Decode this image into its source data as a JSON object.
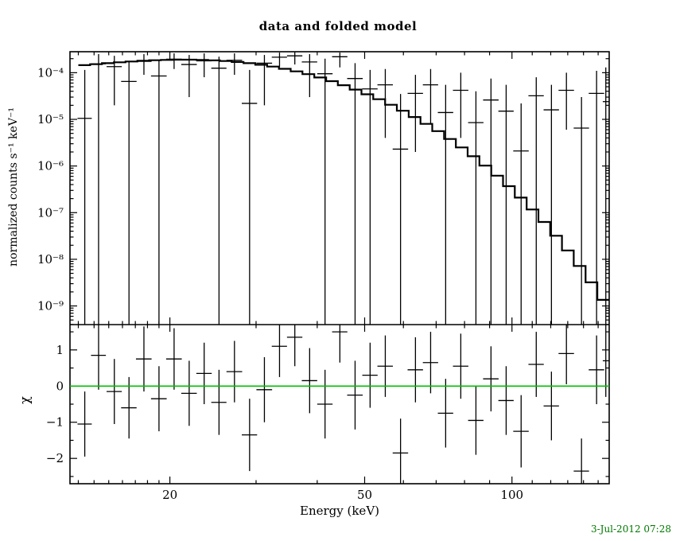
{
  "footer": {
    "timestamp": "3-Jul-2012 07:28",
    "color": "#007700"
  },
  "chart_data": {
    "type": "scatter",
    "title": "data and folded model",
    "xlabel": "Energy (keV)",
    "x_axis": {
      "scale": "log",
      "range": [
        12.5,
        158
      ],
      "major_ticks": [
        {
          "v": 20,
          "label": "20"
        },
        {
          "v": 50,
          "label": "50"
        },
        {
          "v": 100,
          "label": "100"
        }
      ],
      "minor_ticks": [
        13,
        14,
        15,
        16,
        17,
        18,
        19,
        30,
        40,
        60,
        70,
        80,
        90,
        110,
        120,
        130,
        140,
        150
      ]
    },
    "top_panel": {
      "ylabel": "normalized counts s⁻¹ keV⁻¹",
      "y_axis": {
        "scale": "log",
        "range_exp": [
          -9.4,
          -3.55
        ],
        "major_ticks": [
          {
            "exp": -4,
            "label": "10⁻⁴"
          },
          {
            "exp": -5,
            "label": "10⁻⁵"
          },
          {
            "exp": -6,
            "label": "10⁻⁶"
          },
          {
            "exp": -7,
            "label": "10⁻⁷"
          },
          {
            "exp": -8,
            "label": "10⁻⁸"
          },
          {
            "exp": -9,
            "label": "10⁻⁹"
          }
        ]
      },
      "model_step": {
        "bin_edges": [
          13.0,
          13.74,
          14.53,
          15.36,
          16.23,
          17.16,
          18.14,
          19.17,
          20.27,
          21.42,
          22.65,
          23.94,
          25.31,
          26.75,
          28.28,
          29.89,
          31.6,
          33.4,
          35.31,
          37.32,
          39.45,
          41.71,
          44.08,
          46.6,
          49.26,
          52.07,
          55.04,
          58.19,
          61.51,
          65.02,
          68.73,
          72.65,
          76.79,
          81.18,
          85.81,
          90.7,
          95.88,
          101.35,
          107.13,
          113.24,
          119.7,
          126.53,
          133.74,
          141.37,
          149.43,
          157.96
        ],
        "values": [
          0.000145,
          0.000152,
          0.00016,
          0.000167,
          0.000174,
          0.00018,
          0.000185,
          0.000188,
          0.00019,
          0.00019,
          0.000188,
          0.000184,
          0.000178,
          0.00017,
          0.00016,
          0.000148,
          0.000135,
          0.000121,
          0.000107,
          9.3e-05,
          7.9e-05,
          6.6e-05,
          5.4e-05,
          4.35e-05,
          3.45e-05,
          2.7e-05,
          2.05e-05,
          1.53e-05,
          1.12e-05,
          8e-06,
          5.6e-06,
          3.8e-06,
          2.5e-06,
          1.62e-06,
          1.02e-06,
          6.2e-07,
          3.7e-07,
          2.1e-07,
          1.17e-07,
          6.3e-08,
          3.2e-08,
          1.55e-08,
          7.2e-09,
          3.2e-09,
          1.35e-09
        ]
      },
      "data_points": [
        {
          "e": 13.4,
          "de": 0.45,
          "v": 1.05e-05,
          "lo": 1e-12,
          "hi": 0.000115
        },
        {
          "e": 14.3,
          "de": 0.5,
          "v": 0.000155,
          "lo": 1e-12,
          "hi": 0.00025
        },
        {
          "e": 15.4,
          "de": 0.55,
          "v": 0.000135,
          "lo": 2e-05,
          "hi": 0.00023
        },
        {
          "e": 16.5,
          "de": 0.6,
          "v": 6.5e-05,
          "lo": 1e-12,
          "hi": 0.000175
        },
        {
          "e": 17.7,
          "de": 0.65,
          "v": 0.000175,
          "lo": 9e-05,
          "hi": 0.00025
        },
        {
          "e": 19.0,
          "de": 0.7,
          "v": 8.5e-05,
          "lo": 1e-12,
          "hi": 0.00019
        },
        {
          "e": 20.4,
          "de": 0.75,
          "v": 0.000195,
          "lo": 0.00012,
          "hi": 0.00026
        },
        {
          "e": 21.9,
          "de": 0.8,
          "v": 0.00015,
          "lo": 3e-05,
          "hi": 0.00024
        },
        {
          "e": 23.5,
          "de": 0.85,
          "v": 0.00018,
          "lo": 8e-05,
          "hi": 0.00026
        },
        {
          "e": 25.2,
          "de": 0.9,
          "v": 0.000125,
          "lo": 1e-12,
          "hi": 0.00022
        },
        {
          "e": 27.1,
          "de": 1.0,
          "v": 0.000185,
          "lo": 9e-05,
          "hi": 0.00026
        },
        {
          "e": 29.1,
          "de": 1.05,
          "v": 2.2e-05,
          "lo": 1e-12,
          "hi": 0.000115
        },
        {
          "e": 31.2,
          "de": 1.15,
          "v": 0.00016,
          "lo": 2e-05,
          "hi": 0.00024
        },
        {
          "e": 33.5,
          "de": 1.2,
          "v": 0.000215,
          "lo": 0.00013,
          "hi": 0.00027
        },
        {
          "e": 36.0,
          "de": 1.3,
          "v": 0.00023,
          "lo": 0.00015,
          "hi": 0.000275
        },
        {
          "e": 38.6,
          "de": 1.4,
          "v": 0.00017,
          "lo": 3e-05,
          "hi": 0.00025
        },
        {
          "e": 41.5,
          "de": 1.5,
          "v": 9.5e-05,
          "lo": 1e-12,
          "hi": 0.0002
        },
        {
          "e": 44.5,
          "de": 1.6,
          "v": 0.00022,
          "lo": 0.00013,
          "hi": 0.00027
        },
        {
          "e": 47.8,
          "de": 1.75,
          "v": 7.5e-05,
          "lo": 1e-12,
          "hi": 0.00016
        },
        {
          "e": 51.3,
          "de": 1.85,
          "v": 4.5e-05,
          "lo": 1e-12,
          "hi": 0.000115
        },
        {
          "e": 55.1,
          "de": 2.0,
          "v": 5.5e-05,
          "lo": 4e-06,
          "hi": 0.00012
        },
        {
          "e": 59.2,
          "de": 2.15,
          "v": 2.3e-06,
          "lo": 1e-12,
          "hi": 3.5e-05
        },
        {
          "e": 63.5,
          "de": 2.3,
          "v": 3.6e-05,
          "lo": 2e-06,
          "hi": 9e-05
        },
        {
          "e": 68.2,
          "de": 2.45,
          "v": 5.5e-05,
          "lo": 8e-06,
          "hi": 0.00012
        },
        {
          "e": 73.2,
          "de": 2.65,
          "v": 1.4e-05,
          "lo": 1e-12,
          "hi": 5.5e-05
        },
        {
          "e": 78.6,
          "de": 2.85,
          "v": 4.2e-05,
          "lo": 4e-06,
          "hi": 0.0001
        },
        {
          "e": 84.4,
          "de": 3.05,
          "v": 8.5e-06,
          "lo": 1e-12,
          "hi": 4e-05
        },
        {
          "e": 90.6,
          "de": 3.3,
          "v": 2.6e-05,
          "lo": 1e-12,
          "hi": 7.5e-05
        },
        {
          "e": 97.3,
          "de": 3.5,
          "v": 1.5e-05,
          "lo": 1e-12,
          "hi": 5.5e-05
        },
        {
          "e": 104.4,
          "de": 3.8,
          "v": 2.1e-06,
          "lo": 1e-12,
          "hi": 2.2e-05
        },
        {
          "e": 112.1,
          "de": 4.05,
          "v": 3.2e-05,
          "lo": 1e-12,
          "hi": 8e-05
        },
        {
          "e": 120.4,
          "de": 4.35,
          "v": 1.6e-05,
          "lo": 1e-12,
          "hi": 5.5e-05
        },
        {
          "e": 129.2,
          "de": 4.7,
          "v": 4.2e-05,
          "lo": 6e-06,
          "hi": 0.0001
        },
        {
          "e": 138.7,
          "de": 5.0,
          "v": 6.5e-06,
          "lo": 1e-12,
          "hi": 3e-05
        },
        {
          "e": 148.9,
          "de": 5.4,
          "v": 3.6e-05,
          "lo": 1e-12,
          "hi": 0.00011
        },
        {
          "e": 155.5,
          "de": 2.2,
          "v": 2.4e-05,
          "lo": 1e-12,
          "hi": 0.00013
        }
      ]
    },
    "bottom_panel": {
      "ylabel": "χ",
      "y_axis": {
        "range": [
          -2.7,
          1.7
        ],
        "major_ticks": [
          {
            "v": 1,
            "label": "1"
          },
          {
            "v": 0,
            "label": "0"
          },
          {
            "v": -1,
            "label": "−1"
          },
          {
            "v": -2,
            "label": "−2"
          }
        ],
        "minor_ticks": [
          -2.5,
          -1.5,
          -0.5,
          0.5,
          1.5
        ]
      },
      "zero_line": {
        "value": 0,
        "color": "#00c000"
      },
      "points": [
        {
          "e": 13.4,
          "de": 0.45,
          "chi": -1.05,
          "err": 0.9
        },
        {
          "e": 14.3,
          "de": 0.5,
          "chi": 0.85,
          "err": 0.95
        },
        {
          "e": 15.4,
          "de": 0.55,
          "chi": -0.15,
          "err": 0.9
        },
        {
          "e": 16.5,
          "de": 0.6,
          "chi": -0.6,
          "err": 0.85
        },
        {
          "e": 17.7,
          "de": 0.65,
          "chi": 0.75,
          "err": 0.9
        },
        {
          "e": 19.0,
          "de": 0.7,
          "chi": -0.35,
          "err": 0.9
        },
        {
          "e": 20.4,
          "de": 0.75,
          "chi": 0.75,
          "err": 0.85
        },
        {
          "e": 21.9,
          "de": 0.8,
          "chi": -0.2,
          "err": 0.9
        },
        {
          "e": 23.5,
          "de": 0.85,
          "chi": 0.35,
          "err": 0.85
        },
        {
          "e": 25.2,
          "de": 0.9,
          "chi": -0.45,
          "err": 0.9
        },
        {
          "e": 27.1,
          "de": 1.0,
          "chi": 0.4,
          "err": 0.85
        },
        {
          "e": 29.1,
          "de": 1.05,
          "chi": -1.35,
          "err": 1.0
        },
        {
          "e": 31.2,
          "de": 1.15,
          "chi": -0.1,
          "err": 0.9
        },
        {
          "e": 33.5,
          "de": 1.2,
          "chi": 1.1,
          "err": 0.85
        },
        {
          "e": 36.0,
          "de": 1.3,
          "chi": 1.35,
          "err": 0.8
        },
        {
          "e": 38.6,
          "de": 1.4,
          "chi": 0.15,
          "err": 0.9
        },
        {
          "e": 41.5,
          "de": 1.5,
          "chi": -0.5,
          "err": 0.95
        },
        {
          "e": 44.5,
          "de": 1.6,
          "chi": 1.5,
          "err": 0.85
        },
        {
          "e": 47.8,
          "de": 1.75,
          "chi": -0.25,
          "err": 0.95
        },
        {
          "e": 51.3,
          "de": 1.85,
          "chi": 0.3,
          "err": 0.9
        },
        {
          "e": 55.1,
          "de": 2.0,
          "chi": 0.55,
          "err": 0.85
        },
        {
          "e": 59.2,
          "de": 2.15,
          "chi": -1.85,
          "err": 0.95
        },
        {
          "e": 63.5,
          "de": 2.3,
          "chi": 0.45,
          "err": 0.9
        },
        {
          "e": 68.2,
          "de": 2.45,
          "chi": 0.65,
          "err": 0.85
        },
        {
          "e": 73.2,
          "de": 2.65,
          "chi": -0.75,
          "err": 0.95
        },
        {
          "e": 78.6,
          "de": 2.85,
          "chi": 0.55,
          "err": 0.9
        },
        {
          "e": 84.4,
          "de": 3.05,
          "chi": -0.95,
          "err": 0.95
        },
        {
          "e": 90.6,
          "de": 3.3,
          "chi": 0.2,
          "err": 0.9
        },
        {
          "e": 97.3,
          "de": 3.5,
          "chi": -0.4,
          "err": 0.95
        },
        {
          "e": 104.4,
          "de": 3.8,
          "chi": -1.25,
          "err": 1.0
        },
        {
          "e": 112.1,
          "de": 4.05,
          "chi": 0.6,
          "err": 0.9
        },
        {
          "e": 120.4,
          "de": 4.35,
          "chi": -0.55,
          "err": 0.95
        },
        {
          "e": 129.2,
          "de": 4.7,
          "chi": 0.9,
          "err": 0.85
        },
        {
          "e": 138.7,
          "de": 5.0,
          "chi": -2.35,
          "err": 0.9
        },
        {
          "e": 148.9,
          "de": 5.4,
          "chi": 0.45,
          "err": 0.95
        },
        {
          "e": 155.5,
          "de": 2.2,
          "chi": 0.7,
          "err": 1.0
        }
      ]
    }
  }
}
